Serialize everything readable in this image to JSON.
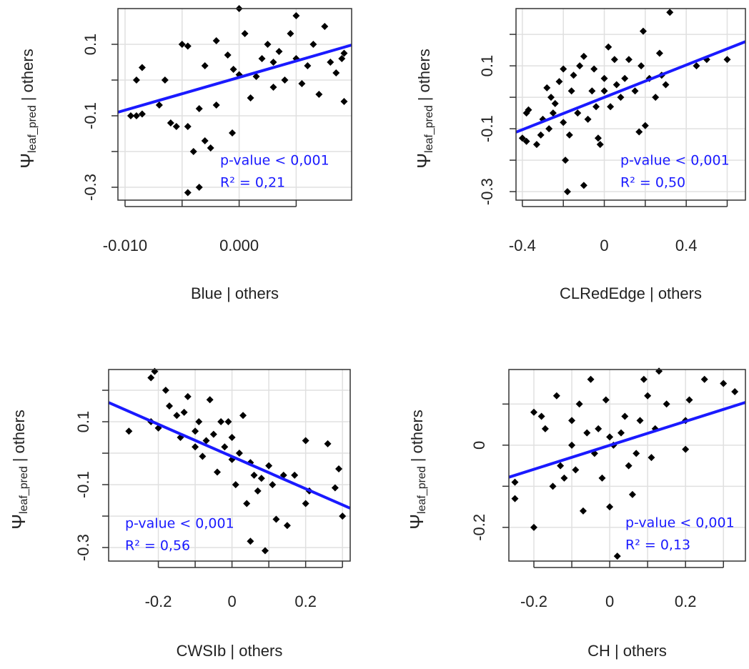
{
  "chart_data": [
    {
      "type": "scatter",
      "xlabel": "Blue | others",
      "ylabel": {
        "symbol": "Ψ",
        "subscript": "leaf_pred",
        "suffix": "| others"
      },
      "xlim": [
        -0.010625,
        0.00986
      ],
      "ylim": [
        -0.336,
        0.2
      ],
      "xticks": [
        {
          "value": -0.01,
          "label": "-0.010"
        },
        {
          "value": 0,
          "label": "0.000"
        }
      ],
      "xminor": [
        -0.005,
        0.005
      ],
      "yticks": [
        0.1,
        -0.1,
        -0.3
      ],
      "yminor": [
        0,
        -0.2
      ],
      "grid": true,
      "color": "#000000",
      "x": [
        -0.0095,
        -0.009,
        -0.0085,
        -0.009,
        -0.0085,
        -0.007,
        -0.0065,
        -0.006,
        -0.0055,
        -0.005,
        -0.0045,
        -0.0045,
        -0.004,
        -0.0045,
        -0.0035,
        -0.0035,
        -0.003,
        -0.003,
        -0.0025,
        -0.002,
        -0.002,
        -0.001,
        -0.0005,
        0.0,
        0.0005,
        0.001,
        0.0015,
        0.002,
        0.0025,
        -0.0006,
        0.0,
        0.003,
        0.003,
        0.0035,
        0.004,
        0.0045,
        0.005,
        0.005,
        0.0055,
        0.006,
        0.0065,
        0.007,
        0.0075,
        0.008,
        0.0085,
        0.009,
        0.0092,
        0.0092
      ],
      "y": [
        -0.1,
        -0.1,
        -0.095,
        0.0,
        0.035,
        -0.07,
        0.0,
        -0.12,
        -0.13,
        0.1,
        0.095,
        -0.13,
        -0.2,
        -0.315,
        -0.3,
        -0.08,
        -0.17,
        0.04,
        -0.19,
        0.11,
        -0.07,
        0.07,
        0.03,
        0.015,
        0.13,
        -0.05,
        0.01,
        0.06,
        0.1,
        -0.148,
        0.2,
        0.05,
        -0.02,
        0.08,
        0.0,
        0.13,
        0.18,
        0.06,
        -0.01,
        0.04,
        0.1,
        -0.04,
        0.15,
        0.05,
        0.02,
        0.06,
        0.075,
        -0.06
      ],
      "fit": {
        "color": "#1a1aff",
        "x": [
          -0.010625,
          0.00986
        ],
        "y": [
          -0.09,
          0.098
        ]
      },
      "annotations": [
        "p-value < 0,001",
        "R² = 0,21"
      ],
      "annotation_color": "#1a1aff"
    },
    {
      "type": "scatter",
      "xlabel": "CLRedEdge | others",
      "ylabel": {
        "symbol": "Ψ",
        "subscript": "leaf_pred",
        "suffix": "| others"
      },
      "xlim": [
        -0.431,
        0.689
      ],
      "ylim": [
        -0.327,
        0.282
      ],
      "xticks": [
        -0.4,
        0.0,
        0.4
      ],
      "xminor": [
        -0.2,
        0.2,
        0.6
      ],
      "yticks": [
        0.1,
        -0.1,
        -0.3
      ],
      "yminor": [
        0.2,
        0,
        -0.2
      ],
      "grid": true,
      "color": "#000000",
      "x": [
        -0.4,
        -0.38,
        -0.38,
        -0.37,
        -0.33,
        -0.31,
        -0.3,
        -0.28,
        -0.27,
        -0.26,
        -0.25,
        -0.24,
        -0.22,
        -0.2,
        -0.2,
        -0.19,
        -0.18,
        -0.17,
        -0.16,
        -0.15,
        -0.13,
        -0.12,
        -0.1,
        -0.1,
        -0.08,
        -0.06,
        -0.05,
        -0.04,
        -0.03,
        -0.02,
        0.0,
        0.0,
        0.02,
        0.03,
        0.05,
        0.06,
        0.08,
        0.1,
        0.12,
        0.15,
        0.17,
        0.18,
        0.19,
        0.2,
        0.22,
        0.25,
        0.27,
        0.28,
        0.3,
        0.32,
        0.45,
        0.5,
        0.6
      ],
      "y": [
        -0.13,
        -0.14,
        -0.05,
        -0.04,
        -0.15,
        -0.12,
        -0.07,
        0.03,
        -0.1,
        0.0,
        -0.05,
        -0.02,
        0.05,
        0.09,
        -0.08,
        -0.2,
        -0.3,
        -0.12,
        0.02,
        0.07,
        -0.05,
        0.1,
        -0.28,
        0.13,
        -0.07,
        0.02,
        0.09,
        -0.03,
        -0.13,
        -0.15,
        0.06,
        0.02,
        0.16,
        -0.03,
        0.12,
        0.04,
        0.0,
        0.06,
        0.12,
        0.02,
        -0.11,
        0.1,
        0.21,
        -0.09,
        0.06,
        0.0,
        0.14,
        0.07,
        0.04,
        0.27,
        0.1,
        0.12,
        0.12
      ],
      "fit": {
        "color": "#1a1aff",
        "x": [
          -0.431,
          0.689
        ],
        "y": [
          -0.111,
          0.177
        ]
      },
      "annotations": [
        "p-value < 0,001",
        "R² = 0,50"
      ],
      "annotation_color": "#1a1aff"
    },
    {
      "type": "scatter",
      "xlabel": "CWSIb | others",
      "ylabel": {
        "symbol": "Ψ",
        "subscript": "leaf_pred",
        "suffix": "| others"
      },
      "xlim": [
        -0.335,
        0.321
      ],
      "ylim": [
        -0.343,
        0.266
      ],
      "xticks": [
        -0.2,
        0.0,
        0.2
      ],
      "xminor": [
        -0.1,
        0.1,
        0.3
      ],
      "yticks": [
        0.1,
        -0.1,
        -0.3
      ],
      "yminor": [
        0.2,
        0,
        -0.2
      ],
      "grid": true,
      "color": "#000000",
      "x": [
        -0.28,
        -0.22,
        -0.21,
        -0.22,
        -0.2,
        -0.18,
        -0.17,
        -0.15,
        -0.14,
        -0.13,
        -0.12,
        -0.1,
        -0.1,
        -0.09,
        -0.08,
        -0.07,
        -0.06,
        -0.05,
        -0.04,
        -0.03,
        -0.02,
        -0.01,
        0.0,
        0.0,
        0.01,
        0.02,
        0.03,
        0.04,
        0.05,
        0.05,
        0.06,
        0.07,
        0.08,
        0.09,
        0.1,
        0.11,
        0.12,
        0.14,
        0.15,
        0.17,
        0.2,
        0.2,
        0.21,
        0.26,
        0.28,
        0.29,
        0.3
      ],
      "y": [
        0.07,
        0.24,
        0.26,
        0.1,
        0.08,
        0.2,
        0.15,
        0.12,
        0.05,
        0.13,
        0.18,
        0.07,
        0.02,
        0.1,
        -0.01,
        0.04,
        0.17,
        0.06,
        -0.06,
        0.1,
        0.02,
        0.1,
        -0.02,
        0.05,
        -0.1,
        0.0,
        0.12,
        -0.16,
        -0.03,
        -0.28,
        -0.07,
        -0.12,
        -0.08,
        -0.31,
        -0.04,
        -0.1,
        -0.21,
        -0.07,
        -0.23,
        -0.07,
        -0.16,
        0.04,
        -0.12,
        0.03,
        -0.11,
        -0.05,
        -0.2
      ],
      "fit": {
        "color": "#1a1aff",
        "x": [
          -0.335,
          0.321
        ],
        "y": [
          0.161,
          -0.175
        ]
      },
      "annotations": [
        "p-value < 0,001",
        "R² = 0,56"
      ],
      "annotation_color": "#1a1aff"
    },
    {
      "type": "scatter",
      "xlabel": "CH | others",
      "ylabel": {
        "symbol": "Ψ",
        "subscript": "leaf_pred",
        "suffix": "| others"
      },
      "xlim": [
        -0.266,
        0.358
      ],
      "ylim": [
        -0.282,
        0.184
      ],
      "xticks": [
        -0.2,
        0.0,
        0.2
      ],
      "xminor": [
        -0.1,
        0.1,
        0.3
      ],
      "yticks": [
        0.0,
        -0.2
      ],
      "yminor": [
        0.1,
        -0.1
      ],
      "grid": true,
      "color": "#000000",
      "x": [
        -0.25,
        -0.25,
        -0.2,
        -0.2,
        -0.18,
        -0.17,
        -0.15,
        -0.14,
        -0.13,
        -0.12,
        -0.1,
        -0.1,
        -0.09,
        -0.08,
        -0.07,
        -0.06,
        -0.05,
        -0.04,
        -0.03,
        -0.02,
        -0.01,
        0.0,
        0.0,
        0.01,
        0.02,
        0.03,
        0.04,
        0.05,
        0.06,
        0.07,
        0.08,
        0.09,
        0.1,
        0.11,
        0.12,
        0.13,
        0.15,
        0.2,
        0.2,
        0.21,
        0.25,
        0.3,
        0.33
      ],
      "y": [
        -0.09,
        -0.13,
        -0.2,
        0.08,
        0.07,
        0.04,
        -0.1,
        0.12,
        -0.05,
        -0.08,
        0.0,
        0.06,
        -0.06,
        0.1,
        -0.16,
        0.03,
        0.16,
        -0.02,
        0.04,
        -0.08,
        0.11,
        -0.15,
        0.02,
        0.0,
        -0.27,
        0.03,
        0.07,
        -0.05,
        -0.12,
        -0.02,
        0.06,
        0.16,
        0.12,
        -0.03,
        0.04,
        0.18,
        0.1,
        0.06,
        -0.01,
        0.11,
        0.16,
        0.15,
        0.13
      ],
      "fit": {
        "color": "#1a1aff",
        "x": [
          -0.266,
          0.358
        ],
        "y": [
          -0.078,
          0.104
        ]
      },
      "annotations": [
        "p-value < 0,001",
        "R² = 0,13"
      ],
      "annotation_color": "#1a1aff"
    }
  ]
}
